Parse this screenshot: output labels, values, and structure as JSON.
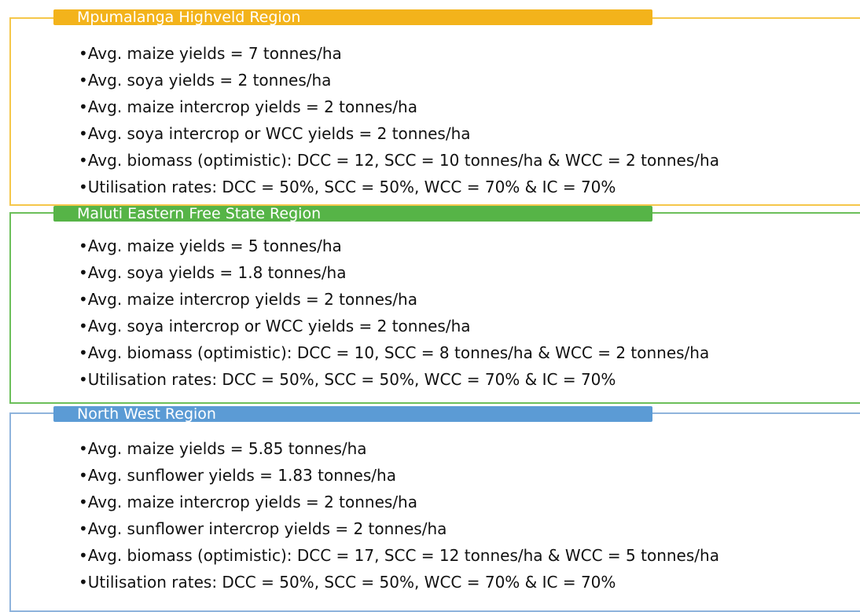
{
  "sections": [
    {
      "title": "Mpumalanga Highveld Region",
      "items": [
        "Avg. maize yields = 7 tonnes/ha",
        "Avg. soya yields = 2 tonnes/ha",
        "Avg. maize intercrop yields = 2 tonnes/ha",
        "Avg. soya intercrop or WCC yields = 2 tonnes/ha",
        "Avg. biomass (optimistic): DCC = 12, SCC = 10 tonnes/ha & WCC = 2 tonnes/ha",
        "Utilisation rates: DCC = 50%, SCC = 50%, WCC = 70% & IC = 70%"
      ]
    },
    {
      "title": "Maluti Eastern Free State Region",
      "items": [
        "Avg. maize yields = 5 tonnes/ha",
        "Avg. soya yields = 1.8 tonnes/ha",
        "Avg. maize intercrop yields = 2 tonnes/ha",
        "Avg. soya intercrop or WCC yields = 2 tonnes/ha",
        "Avg. biomass (optimistic): DCC = 10, SCC = 8 tonnes/ha & WCC = 2 tonnes/ha",
        "Utilisation rates: DCC = 50%, SCC = 50%, WCC = 70% & IC = 70%"
      ]
    },
    {
      "title": "North West Region",
      "items": [
        "Avg. maize yields = 5.85 tonnes/ha",
        "Avg. sunflower yields = 1.83 tonnes/ha",
        "Avg. maize intercrop yields = 2 tonnes/ha",
        "Avg. sunflower intercrop yields = 2 tonnes/ha",
        "Avg. biomass (optimistic): DCC = 17, SCC = 12 tonnes/ha & WCC = 5 tonnes/ha",
        "Utilisation rates: DCC = 50%, SCC = 50%, WCC = 70% & IC = 70%"
      ]
    }
  ]
}
